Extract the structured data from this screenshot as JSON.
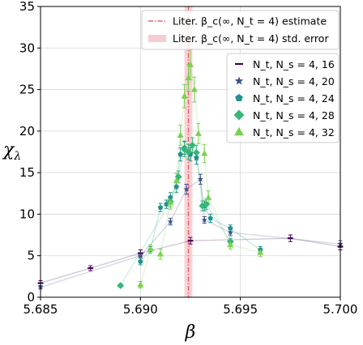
{
  "chart_data": {
    "type": "scatter",
    "xlabel": "β",
    "ylabel": "χ_λ",
    "xlim": [
      5.685,
      5.7
    ],
    "ylim": [
      0,
      35
    ],
    "xticks": [
      "5.685",
      "5.690",
      "5.695",
      "5.700"
    ],
    "yticks": [
      "0",
      "5",
      "10",
      "15",
      "20",
      "25",
      "30",
      "35"
    ],
    "grid": true,
    "reference": {
      "beta_c": 5.6924,
      "std_error": 0.0002,
      "line_label": "Liter. β_c(∞, N_t = 4) estimate",
      "band_label": "Liter. β_c(∞, N_t = 4) std. error",
      "color": "#e8606a"
    },
    "legend_top_placement": "top-right",
    "legend_series_placement": "right",
    "series": [
      {
        "name": "N_t, N_s = 4, 16",
        "marker": "dash",
        "color": "#440154",
        "points": [
          {
            "x": 5.685,
            "y": 1.7,
            "err": 0.3
          },
          {
            "x": 5.6875,
            "y": 3.5,
            "err": 0.3
          },
          {
            "x": 5.69,
            "y": 5.3,
            "err": 0.4
          },
          {
            "x": 5.6925,
            "y": 6.8,
            "err": 0.4
          },
          {
            "x": 5.6975,
            "y": 7.1,
            "err": 0.4
          },
          {
            "x": 5.7,
            "y": 6.1,
            "err": 0.4
          }
        ]
      },
      {
        "name": "N_t, N_s = 4, 20",
        "marker": "star",
        "color": "#3b528b",
        "points": [
          {
            "x": 5.685,
            "y": 1.2,
            "err": 0.2
          },
          {
            "x": 5.69,
            "y": 5.0,
            "err": 0.3
          },
          {
            "x": 5.6915,
            "y": 9.1,
            "err": 0.4
          },
          {
            "x": 5.6923,
            "y": 13.0,
            "err": 0.6
          },
          {
            "x": 5.693,
            "y": 14.2,
            "err": 0.6
          },
          {
            "x": 5.6932,
            "y": 9.3,
            "err": 0.4
          },
          {
            "x": 5.6945,
            "y": 7.8,
            "err": 0.4
          },
          {
            "x": 5.7,
            "y": 6.4,
            "err": 0.4
          }
        ]
      },
      {
        "name": "N_t, N_s = 4, 24",
        "marker": "pentagon",
        "color": "#21918c",
        "points": [
          {
            "x": 5.69,
            "y": 4.3,
            "err": 0.4
          },
          {
            "x": 5.6905,
            "y": 5.7,
            "err": 0.4
          },
          {
            "x": 5.691,
            "y": 10.8,
            "err": 0.5
          },
          {
            "x": 5.6913,
            "y": 11.2,
            "err": 0.5
          },
          {
            "x": 5.6915,
            "y": 12.0,
            "err": 0.6
          },
          {
            "x": 5.6918,
            "y": 13.3,
            "err": 0.7
          },
          {
            "x": 5.692,
            "y": 17.2,
            "err": 0.8
          },
          {
            "x": 5.6922,
            "y": 18.0,
            "err": 0.8
          },
          {
            "x": 5.6925,
            "y": 17.2,
            "err": 0.8
          },
          {
            "x": 5.6928,
            "y": 16.8,
            "err": 0.8
          },
          {
            "x": 5.6932,
            "y": 11.0,
            "err": 0.6
          },
          {
            "x": 5.6935,
            "y": 9.5,
            "err": 0.5
          },
          {
            "x": 5.6945,
            "y": 8.3,
            "err": 0.4
          },
          {
            "x": 5.696,
            "y": 5.7,
            "err": 0.4
          }
        ]
      },
      {
        "name": "N_t, N_s = 4, 28",
        "marker": "diamond",
        "color": "#35b779",
        "points": [
          {
            "x": 5.689,
            "y": 1.4,
            "err": 0.2
          },
          {
            "x": 5.6915,
            "y": 11.5,
            "err": 0.6
          },
          {
            "x": 5.6919,
            "y": 14.5,
            "err": 0.7
          },
          {
            "x": 5.6922,
            "y": 17.8,
            "err": 0.9
          },
          {
            "x": 5.6924,
            "y": 17.5,
            "err": 0.9
          },
          {
            "x": 5.6926,
            "y": 18.3,
            "err": 0.9
          },
          {
            "x": 5.6928,
            "y": 17.4,
            "err": 0.9
          },
          {
            "x": 5.6931,
            "y": 11.0,
            "err": 0.6
          },
          {
            "x": 5.6933,
            "y": 11.2,
            "err": 0.6
          },
          {
            "x": 5.6945,
            "y": 6.7,
            "err": 0.4
          }
        ]
      },
      {
        "name": "N_t, N_s = 4, 32",
        "marker": "triangle",
        "color": "#7ad151",
        "points": [
          {
            "x": 5.69,
            "y": 1.5,
            "err": 0.4
          },
          {
            "x": 5.6905,
            "y": 5.8,
            "err": 0.5
          },
          {
            "x": 5.691,
            "y": 5.2,
            "err": 0.6
          },
          {
            "x": 5.6915,
            "y": 11.4,
            "err": 0.8
          },
          {
            "x": 5.6918,
            "y": 14.0,
            "err": 0.9
          },
          {
            "x": 5.692,
            "y": 19.5,
            "err": 1.2
          },
          {
            "x": 5.6922,
            "y": 24.2,
            "err": 1.4
          },
          {
            "x": 5.6924,
            "y": 26.4,
            "err": 1.6
          },
          {
            "x": 5.6925,
            "y": 28.0,
            "err": 1.8
          },
          {
            "x": 5.6927,
            "y": 25.0,
            "err": 1.5
          },
          {
            "x": 5.6929,
            "y": 19.7,
            "err": 1.2
          },
          {
            "x": 5.6932,
            "y": 17.3,
            "err": 1.1
          },
          {
            "x": 5.6934,
            "y": 12.0,
            "err": 0.8
          },
          {
            "x": 5.6945,
            "y": 6.3,
            "err": 0.5
          },
          {
            "x": 5.696,
            "y": 5.4,
            "err": 0.5
          }
        ]
      }
    ]
  }
}
